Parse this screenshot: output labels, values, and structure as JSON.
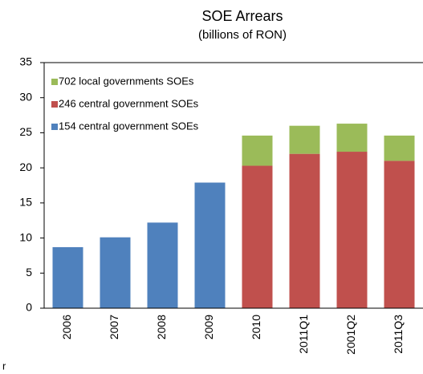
{
  "chart_data": {
    "type": "stacked_bar",
    "title": "SOE Arrears",
    "subtitle": "(billions of RON)",
    "categories": [
      "2006",
      "2007",
      "2008",
      "2009",
      "2010",
      "2011Q1",
      "2001Q2",
      "2011Q3"
    ],
    "series": [
      {
        "name": "154 central government SOEs",
        "color": "#4f81bd",
        "values": [
          8.7,
          10.1,
          12.2,
          17.9,
          null,
          null,
          null,
          null
        ]
      },
      {
        "name": "246 central government SOEs",
        "color": "#c0504d",
        "values": [
          null,
          null,
          null,
          null,
          20.3,
          22.0,
          22.3,
          21.0
        ]
      },
      {
        "name": "702 local governments SOEs",
        "color": "#9bbb59",
        "values": [
          null,
          null,
          null,
          null,
          4.3,
          4.0,
          4.0,
          3.6
        ]
      }
    ],
    "ylim": [
      0,
      35
    ],
    "yticks": [
      0,
      5,
      10,
      15,
      20,
      25,
      30,
      35
    ],
    "grid": false,
    "legend": "top-left",
    "note": "r"
  }
}
